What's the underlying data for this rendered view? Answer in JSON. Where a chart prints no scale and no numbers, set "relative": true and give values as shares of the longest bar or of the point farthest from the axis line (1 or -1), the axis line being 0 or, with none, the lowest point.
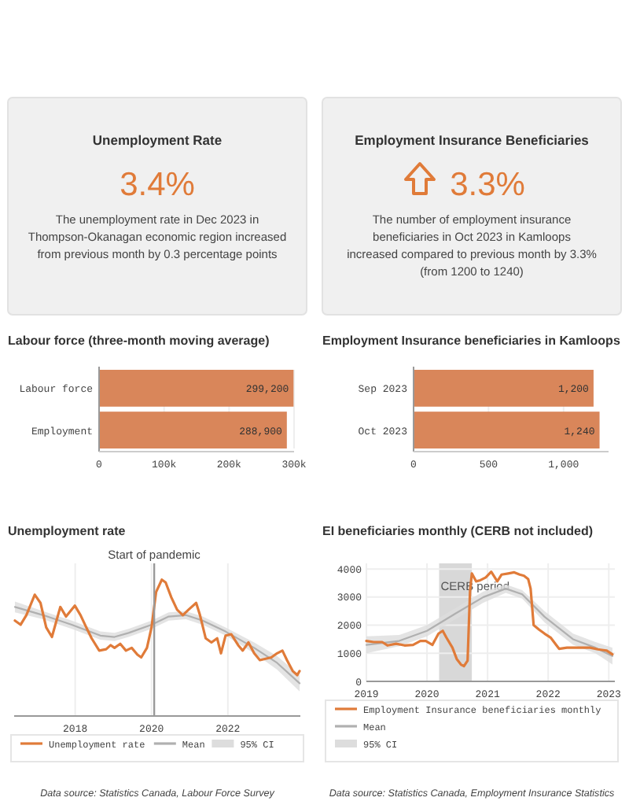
{
  "chart_data": [
    {
      "type": "other",
      "title": "Unemployment Rate",
      "subtitle": "3.4%",
      "annotations": [
        "The unemployment rate in Dec 2023 in Thompson-Okanagan economic region increased from previous month by 0.3 percentage points"
      ]
    },
    {
      "type": "other",
      "title": "Employment Insurance Beneficiaries",
      "subtitle": "3.3%",
      "annotations": [
        "The number of employment insurance beneficiaries in Oct 2023 in Kamloops increased compared to previous month by 3.3% (from 1200 to 1240)"
      ]
    },
    {
      "type": "bar",
      "orientation": "horizontal",
      "title": "Labour force (three-month moving average)",
      "categories": [
        "Labour force",
        "Employment"
      ],
      "values": [
        299200,
        288900
      ],
      "value_labels": [
        "299,200",
        "288,900"
      ],
      "color": "#d9865a",
      "xlim": [
        0,
        300000
      ],
      "xticks": [
        0,
        {
          "value": 100000,
          "label": "100k"
        },
        {
          "value": 200000,
          "label": "200k"
        },
        {
          "value": 300000,
          "label": "300k"
        }
      ],
      "grid": "x"
    },
    {
      "type": "bar",
      "orientation": "horizontal",
      "title": "Employment Insurance beneficiaries in Kamloops",
      "categories": [
        "Sep 2023",
        "Oct 2023"
      ],
      "values": [
        1200,
        1240
      ],
      "value_labels": [
        "1,200",
        "1,240"
      ],
      "color": "#d9865a",
      "xlim": [
        0,
        1300
      ],
      "xticks": [
        0,
        500,
        {
          "value": 1000,
          "label": "1,000"
        }
      ],
      "grid": "x"
    },
    {
      "type": "line",
      "title": "Unemployment rate",
      "relative": true,
      "xlim": [
        2016.4,
        2023.9
      ],
      "xticks": [
        2018,
        2020,
        2022
      ],
      "grid": "x",
      "legend": "bottom",
      "series": [
        {
          "name": "Mean",
          "color": "#b0b0b0",
          "x": [
            2016.42,
            2017.16,
            2017.91,
            2018.66,
            2019.03,
            2019.4,
            2020.0,
            2020.45,
            2020.9,
            2021.34,
            2021.94,
            2022.69,
            2023.29,
            2023.88
          ],
          "values": [
            0.8,
            0.74,
            0.67,
            0.59,
            0.58,
            0.61,
            0.67,
            0.73,
            0.74,
            0.7,
            0.62,
            0.5,
            0.39,
            0.24
          ],
          "lower": [
            0.76,
            0.71,
            0.64,
            0.56,
            0.55,
            0.58,
            0.64,
            0.7,
            0.71,
            0.67,
            0.59,
            0.46,
            0.34,
            0.18
          ],
          "upper": [
            0.84,
            0.77,
            0.7,
            0.62,
            0.61,
            0.64,
            0.7,
            0.76,
            0.77,
            0.73,
            0.65,
            0.54,
            0.44,
            0.3
          ]
        },
        {
          "name": "Unemployment rate",
          "color": "#e07b39",
          "x": [
            2016.42,
            2016.57,
            2016.72,
            2016.94,
            2017.09,
            2017.24,
            2017.39,
            2017.61,
            2017.76,
            2017.99,
            2018.14,
            2018.29,
            2018.43,
            2018.63,
            2018.81,
            2018.93,
            2019.03,
            2019.18,
            2019.33,
            2019.48,
            2019.63,
            2019.73,
            2019.88,
            2020.0,
            2020.12,
            2020.27,
            2020.37,
            2020.52,
            2020.67,
            2020.82,
            2020.97,
            2021.17,
            2021.27,
            2021.42,
            2021.57,
            2021.72,
            2021.82,
            2021.94,
            2022.09,
            2022.27,
            2022.39,
            2022.54,
            2022.69,
            2022.84,
            2022.99,
            2023.14,
            2023.29,
            2023.43,
            2023.55,
            2023.7,
            2023.82,
            2023.88
          ],
          "values": [
            0.7,
            0.67,
            0.74,
            0.89,
            0.83,
            0.65,
            0.58,
            0.8,
            0.73,
            0.81,
            0.74,
            0.65,
            0.57,
            0.48,
            0.49,
            0.52,
            0.5,
            0.53,
            0.48,
            0.5,
            0.45,
            0.43,
            0.5,
            0.65,
            0.91,
            1,
            0.98,
            0.87,
            0.78,
            0.74,
            0.78,
            0.83,
            0.74,
            0.57,
            0.54,
            0.57,
            0.46,
            0.59,
            0.6,
            0.52,
            0.48,
            0.54,
            0.46,
            0.41,
            0.42,
            0.43,
            0.46,
            0.48,
            0.41,
            0.33,
            0.3,
            0.33
          ]
        }
      ],
      "ref_lines": [
        {
          "axis": "x",
          "value": 2020.07,
          "label": "Start of pandemic",
          "color": "#999999"
        }
      ],
      "annotations": [
        "95% CI",
        "Data source: Statistics Canada, Labour Force Survey"
      ]
    },
    {
      "type": "line",
      "title": "EI beneficiaries monthly (CERB not included)",
      "xlim": [
        2019,
        2023.1
      ],
      "xticks": [
        2019,
        2020,
        2021,
        2022,
        2023
      ],
      "ylim": [
        0,
        4200
      ],
      "yticks": [
        0,
        1000,
        2000,
        3000,
        4000
      ],
      "grid": true,
      "legend": "bottom",
      "series": [
        {
          "name": "Mean",
          "color": "#b0b0b0",
          "x": [
            2019,
            2019.54,
            2020,
            2020.46,
            2020.93,
            2021.3,
            2021.57,
            2021.94,
            2022.41,
            2022.78,
            2023.06
          ],
          "values": [
            1300,
            1440,
            1800,
            2400,
            3000,
            3300,
            3100,
            2300,
            1500,
            1200,
            900
          ],
          "lower": [
            1000,
            1250,
            1600,
            2200,
            2800,
            3150,
            2950,
            2100,
            1300,
            1000,
            600
          ],
          "upper": [
            1600,
            1650,
            2000,
            2600,
            3200,
            3450,
            3250,
            2500,
            1700,
            1400,
            1200
          ]
        },
        {
          "name": "Employment Insurance beneficiaries monthly",
          "color": "#e07b39",
          "x": [
            2019,
            2019.12,
            2019.26,
            2019.35,
            2019.49,
            2019.63,
            2019.77,
            2019.89,
            2019.98,
            2020.09,
            2020.19,
            2020.26,
            2020.32,
            2020.42,
            2020.49,
            2020.56,
            2020.61,
            2020.67,
            2020.71,
            2020.74,
            2020.81,
            2020.88,
            2020.97,
            2021.06,
            2021.16,
            2021.23,
            2021.34,
            2021.44,
            2021.53,
            2021.6,
            2021.67,
            2021.71,
            2021.76,
            2021.85,
            2021.94,
            2022.04,
            2022.13,
            2022.18,
            2022.31,
            2022.5,
            2022.69,
            2022.82,
            2022.96,
            2023.06
          ],
          "values": [
            1440,
            1400,
            1400,
            1280,
            1340,
            1280,
            1300,
            1440,
            1440,
            1300,
            1700,
            1800,
            1560,
            1200,
            800,
            600,
            540,
            740,
            3200,
            3840,
            3560,
            3600,
            3700,
            3900,
            3560,
            3800,
            3840,
            3880,
            3800,
            3760,
            3640,
            3300,
            2000,
            1840,
            1700,
            1560,
            1300,
            1160,
            1200,
            1200,
            1200,
            1140,
            1100,
            960
          ]
        }
      ],
      "bands": [
        {
          "axis": "x",
          "from": 2020.2,
          "to": 2020.74,
          "label": "CERB period",
          "color": "#d8d8d8"
        }
      ],
      "annotations": [
        "95% CI",
        "Data source: Statistics Canada, Employment Insurance Statistics"
      ]
    }
  ]
}
